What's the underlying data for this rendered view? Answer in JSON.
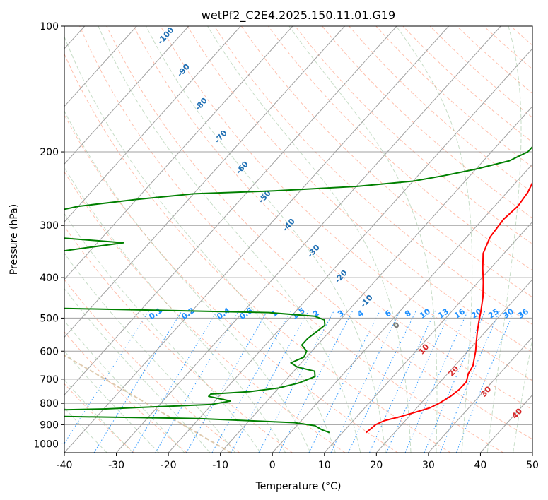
{
  "chart_data": {
    "type": "line",
    "title": "wetPf2_C2E4.2025.150.11.01.G19",
    "xlabel": "Temperature (°C)",
    "ylabel": "Pressure (hPa)",
    "xlim": [
      -40,
      50
    ],
    "ylim": [
      1050,
      100
    ],
    "y_scale": "log",
    "grid": true,
    "x_ticks": [
      -40,
      -30,
      -20,
      -10,
      0,
      10,
      20,
      30,
      40,
      50
    ],
    "y_ticks": [
      100,
      200,
      300,
      400,
      500,
      600,
      700,
      800,
      900,
      1000
    ],
    "colors": {
      "temperature": "#ff0000",
      "dewpoint": "#008000",
      "isotherm": "#a0a0a0",
      "dry_adiabat": "#ff8c69",
      "moist_adiabat": "#8fbc8f",
      "mixing_ratio": "#1e90ff",
      "lcl_curve": "#d2b48c",
      "wbt_label": "#1f6fb4",
      "pos_label": "#d62728"
    },
    "wet_bulb_labels": [
      "-100",
      "-90",
      "-80",
      "-70",
      "-60",
      "-50",
      "-40",
      "-30",
      "-20",
      "-10",
      "0",
      "10",
      "20",
      "30",
      "40"
    ],
    "mixing_ratio_labels": [
      "0.1",
      "0.2",
      "0.4",
      "0.6",
      "1",
      "1.5",
      "2",
      "3",
      "4",
      "6",
      "8",
      "10",
      "13",
      "16",
      "20",
      "25",
      "30",
      "36"
    ],
    "series": [
      {
        "name": "",
        "role": "temperature",
        "points": [
          [
            14.5,
            940
          ],
          [
            14.8,
            920
          ],
          [
            15.0,
            900
          ],
          [
            16.0,
            880
          ],
          [
            18.5,
            860
          ],
          [
            20.5,
            840
          ],
          [
            22.5,
            820
          ],
          [
            23.5,
            800
          ],
          [
            24.5,
            770
          ],
          [
            25.0,
            740
          ],
          [
            25.0,
            710
          ],
          [
            24.0,
            680
          ],
          [
            23.5,
            650
          ],
          [
            22.5,
            625
          ],
          [
            21.5,
            600
          ],
          [
            20.0,
            570
          ],
          [
            18.5,
            540
          ],
          [
            17.0,
            510
          ],
          [
            15.5,
            480
          ],
          [
            13.5,
            445
          ],
          [
            11.0,
            410
          ],
          [
            8.5,
            380
          ],
          [
            6.0,
            350
          ],
          [
            4.5,
            320
          ],
          [
            4.0,
            290
          ],
          [
            4.5,
            270
          ],
          [
            4.0,
            250
          ],
          [
            2.5,
            225
          ],
          [
            1.5,
            200
          ],
          [
            1.0,
            180
          ],
          [
            1.0,
            160
          ],
          [
            0.0,
            145
          ],
          [
            0.0,
            135
          ],
          [
            0.5,
            125
          ],
          [
            1.0,
            118
          ],
          [
            1.5,
            112
          ],
          [
            1.5,
            108
          ],
          [
            2.0,
            104
          ],
          [
            3.0,
            101
          ],
          [
            4.0,
            100
          ]
        ]
      },
      {
        "name": "",
        "role": "dewpoint",
        "points": [
          [
            7.5,
            940
          ],
          [
            5.5,
            925
          ],
          [
            3.5,
            905
          ],
          [
            -1.0,
            890
          ],
          [
            -20.0,
            870
          ],
          [
            -60.0,
            855
          ],
          [
            -70.0,
            845
          ],
          [
            -60.0,
            835
          ],
          [
            -40.0,
            825
          ],
          [
            -30.0,
            815
          ],
          [
            -20.0,
            805
          ],
          [
            -17.0,
            790
          ],
          [
            -22.0,
            770
          ],
          [
            -22.0,
            760
          ],
          [
            -15.0,
            750
          ],
          [
            -10.0,
            735
          ],
          [
            -7.0,
            715
          ],
          [
            -5.0,
            690
          ],
          [
            -6.0,
            670
          ],
          [
            -10.0,
            655
          ],
          [
            -12.0,
            640
          ],
          [
            -10.5,
            620
          ],
          [
            -11.0,
            600
          ],
          [
            -13.0,
            580
          ],
          [
            -13.0,
            560
          ],
          [
            -12.5,
            540
          ],
          [
            -12.0,
            520
          ],
          [
            -13.0,
            505
          ],
          [
            -15.5,
            495
          ],
          [
            -25.0,
            485
          ],
          [
            -50.0,
            478
          ],
          [
            -80.0,
            470
          ],
          [
            -95.0,
            450
          ],
          [
            -95.0,
            440
          ],
          [
            -95.0,
            420
          ],
          [
            -93.0,
            400
          ],
          [
            -90.0,
            380
          ],
          [
            -85.0,
            360
          ],
          [
            -75.0,
            345
          ],
          [
            -65.0,
            330
          ],
          [
            -80.0,
            320
          ],
          [
            -90.0,
            310
          ],
          [
            -90.0,
            300
          ],
          [
            -87.0,
            285
          ],
          [
            -80.0,
            270
          ],
          [
            -70.0,
            260
          ],
          [
            -60.0,
            252
          ],
          [
            -45.0,
            248
          ],
          [
            -30.0,
            242
          ],
          [
            -20.0,
            235
          ],
          [
            -15.0,
            228
          ],
          [
            -10.0,
            220
          ],
          [
            -5.0,
            210
          ],
          [
            -3.0,
            200
          ],
          [
            -3.0,
            190
          ],
          [
            -2.0,
            180
          ],
          [
            -2.0,
            170
          ],
          [
            -2.5,
            160
          ],
          [
            -1.5,
            150
          ],
          [
            0.0,
            140
          ],
          [
            0.5,
            130
          ],
          [
            1.5,
            125
          ],
          [
            2.0,
            115
          ],
          [
            2.5,
            110
          ],
          [
            3.0,
            105
          ],
          [
            3.5,
            100
          ]
        ]
      }
    ]
  }
}
